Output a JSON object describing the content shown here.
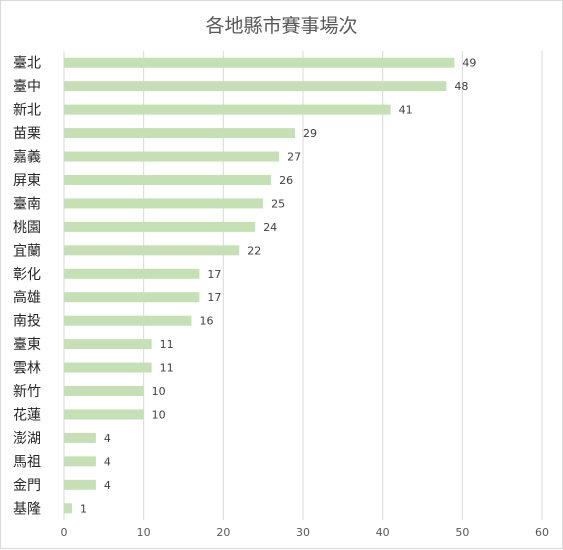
{
  "chart_data": {
    "type": "bar",
    "orientation": "horizontal",
    "title": "各地縣市賽事場次",
    "xlabel": "",
    "ylabel": "",
    "xlim": [
      0,
      60
    ],
    "xticks": [
      0,
      10,
      20,
      30,
      40,
      50,
      60
    ],
    "grid": true,
    "legend": "none",
    "bar_color": "#c5e0b4",
    "categories": [
      "臺北",
      "臺中",
      "新北",
      "苗栗",
      "嘉義",
      "屏東",
      "臺南",
      "桃園",
      "宜蘭",
      "彰化",
      "高雄",
      "南投",
      "臺東",
      "雲林",
      "新竹",
      "花蓮",
      "澎湖",
      "馬祖",
      "金門",
      "基隆"
    ],
    "values": [
      49,
      48,
      41,
      29,
      27,
      26,
      25,
      24,
      22,
      17,
      17,
      16,
      11,
      11,
      10,
      10,
      4,
      4,
      4,
      1
    ]
  }
}
